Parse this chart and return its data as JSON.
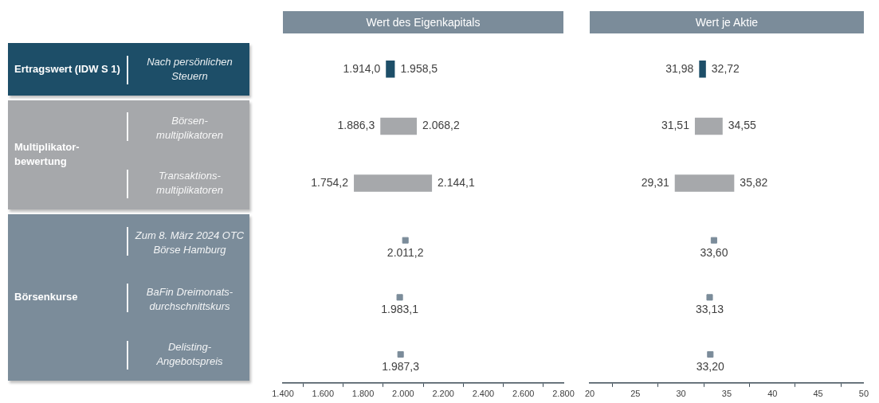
{
  "chart_data": [
    {
      "type": "bar",
      "orientation": "horizontal",
      "title": "Wert des Eigenkapitals",
      "categories": [
        "Nach persönlichen Steuern",
        "Börsen-multiplikatoren",
        "Transaktions-multiplikatoren",
        "Zum 8. März 2024 OTC Börse Hamburg",
        "BaFin Dreimonats-durchschnittskurs",
        "Delisting-Angebotspreis"
      ],
      "annotations": [
        "Ertragswert (IDW S 1)",
        "Multiplikator-bewertung",
        "Börsenkurse"
      ],
      "xlim": [
        1400,
        2800
      ],
      "xticks": [
        {
          "value": 1400,
          "label": "1.400"
        },
        {
          "value": 1600,
          "label": "1.600"
        },
        {
          "value": 1800,
          "label": "1.800"
        },
        {
          "value": 2000,
          "label": "2.000"
        },
        {
          "value": 2200,
          "label": "2.200"
        },
        {
          "value": 2400,
          "label": "2.400"
        },
        {
          "value": 2600,
          "label": "2.600"
        },
        {
          "value": 2800,
          "label": "2.800"
        }
      ],
      "series": [
        {
          "type": "bar",
          "colors": [
            "#1d4e68",
            "#a6a8ab",
            "#a6a8ab",
            null,
            null,
            null
          ],
          "base": [
            1914.0,
            1886.3,
            1754.2,
            null,
            null,
            null
          ],
          "values": [
            44.5,
            181.9,
            389.9,
            null,
            null,
            null
          ],
          "value_labels": [
            [
              "1.914,0",
              "1.958,5"
            ],
            [
              "1.886,3",
              "2.068,2"
            ],
            [
              "1.754,2",
              "2.144,1"
            ],
            null,
            null,
            null
          ]
        },
        {
          "type": "scatter",
          "color": "#7b8c9a",
          "marker": "square",
          "values": [
            null,
            null,
            null,
            2011.2,
            1983.1,
            1987.3
          ],
          "value_labels": [
            null,
            null,
            null,
            "2.011,2",
            "1.983,1",
            "1.987,3"
          ]
        }
      ]
    },
    {
      "type": "bar",
      "orientation": "horizontal",
      "title": "Wert je Aktie",
      "categories": [
        null,
        null,
        null,
        null,
        null,
        null
      ],
      "xlim": [
        20,
        50
      ],
      "xticks": [
        20,
        25,
        30,
        35,
        40,
        45,
        50
      ],
      "series": [
        {
          "type": "bar",
          "colors": [
            "#1d4e68",
            "#a6a8ab",
            "#a6a8ab",
            null,
            null,
            null
          ],
          "base": [
            31.98,
            31.51,
            29.31,
            null,
            null,
            null
          ],
          "values": [
            0.74,
            3.04,
            6.51,
            null,
            null,
            null
          ],
          "value_labels": [
            [
              "31,98",
              "32,72"
            ],
            [
              "31,51",
              "34,55"
            ],
            [
              "29,31",
              "35,82"
            ],
            null,
            null,
            null
          ]
        },
        {
          "type": "scatter",
          "color": "#7b8c9a",
          "marker": "square",
          "values": [
            null,
            null,
            null,
            33.6,
            33.13,
            33.2
          ],
          "value_labels": [
            null,
            null,
            null,
            "33,60",
            "33,13",
            "33,20"
          ]
        }
      ]
    }
  ]
}
